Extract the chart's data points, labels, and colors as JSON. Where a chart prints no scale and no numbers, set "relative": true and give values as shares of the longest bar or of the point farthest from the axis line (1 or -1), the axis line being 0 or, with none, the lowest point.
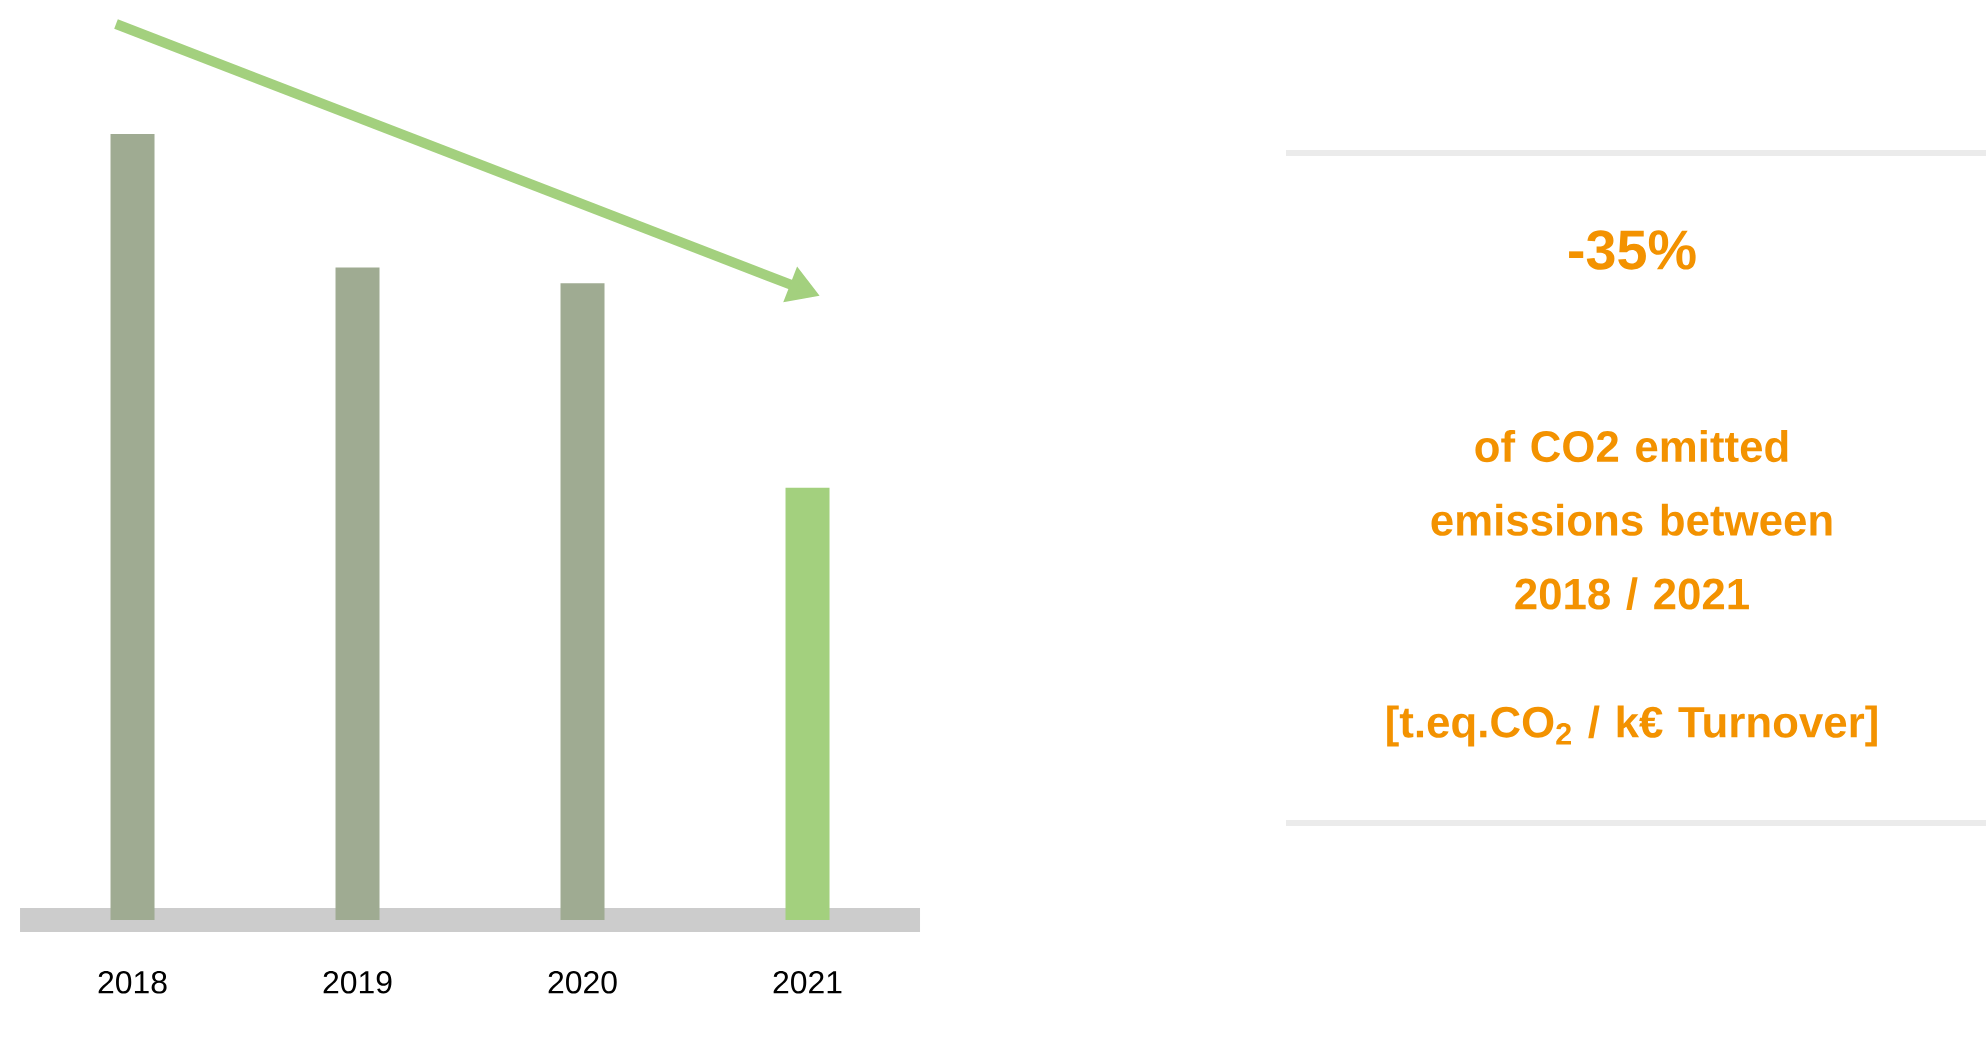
{
  "chart_data": {
    "type": "bar",
    "relative": true,
    "categories": [
      "2018",
      "2019",
      "2020",
      "2021"
    ],
    "values": [
      1,
      0.83,
      0.81,
      0.55
    ],
    "colors": [
      "#9fab92",
      "#9fab92",
      "#9fab92",
      "#a3d07e"
    ],
    "annotations": [
      "-35%",
      "of CO2 emitted emissions between 2018 / 2021",
      "[t.eq.CO$_{2}$ / k€ Turnover]"
    ]
  }
}
